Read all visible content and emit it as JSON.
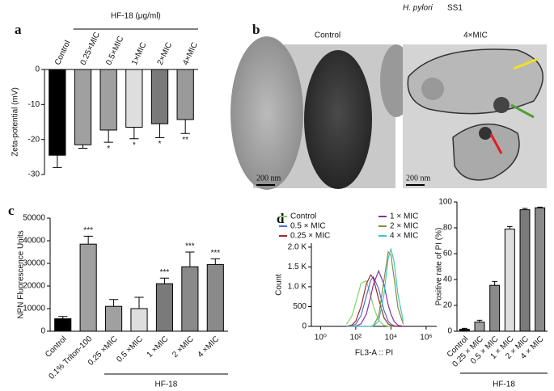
{
  "chart_data": [
    {
      "type": "bar",
      "panel": "a",
      "ylabel": "Zeta-potential (mV)",
      "group_label": "HF-18 (μg/ml)",
      "categories": [
        "Control",
        "0.25×MIC",
        "0.5×MIC",
        "1×MIC",
        "2×MIC",
        "4×MIC"
      ],
      "values": [
        -24.5,
        -21.5,
        -17.3,
        -16.5,
        -15.5,
        -14.3
      ],
      "errors": [
        3.5,
        1,
        3.5,
        3.3,
        4,
        4
      ],
      "significance": [
        null,
        null,
        "*",
        "*",
        "*",
        "**"
      ],
      "colors": [
        "#000000",
        "#a0a0a0",
        "#a0a0a0",
        "#dedede",
        "#7a7a7a",
        "#9a9a9a"
      ],
      "ylim": [
        -30,
        0
      ],
      "yticks": [
        0,
        -10,
        -20,
        -30
      ]
    },
    {
      "type": "bar",
      "panel": "c",
      "ylabel": "NPN  Fluorescence Units",
      "group_label": "HF-18",
      "categories": [
        "Control",
        "0.1% Triton-100",
        "0.25 ×MIC",
        "0.5 ×MIC",
        "1 ×MIC",
        "2 ×MIC",
        "4 ×MIC"
      ],
      "values": [
        5500,
        38500,
        11000,
        10000,
        21000,
        28500,
        29500
      ],
      "errors": [
        1000,
        3500,
        3000,
        5000,
        2500,
        6500,
        2500
      ],
      "significance": [
        null,
        "***",
        null,
        null,
        "***",
        "***",
        "***"
      ],
      "colors": [
        "#000000",
        "#a0a0a0",
        "#a0a0a0",
        "#dedede",
        "#7a7a7a",
        "#8a8a8a",
        "#8a8a8a"
      ],
      "ylim": [
        0,
        50000
      ],
      "yticks": [
        0,
        10000,
        20000,
        30000,
        40000,
        50000
      ]
    },
    {
      "type": "line",
      "panel": "d",
      "ylabel": "Count",
      "xlabel": "FL3-A :: PI",
      "xscale": "log",
      "x": [
        30,
        60,
        100,
        200,
        400,
        700,
        1000,
        2000,
        4000,
        7000,
        10000,
        15000,
        25000,
        50000
      ],
      "series": [
        {
          "name": "Control",
          "color": "#7fd46e",
          "values": [
            54,
            260,
            590,
            1090,
            1150,
            780,
            510,
            150,
            25,
            5,
            0,
            0,
            0,
            0
          ]
        },
        {
          "name": "0.5 × MIC",
          "color": "#4a70d0",
          "values": [
            1,
            12,
            56,
            275,
            760,
            1160,
            1250,
            950,
            410,
            130,
            56,
            16,
            3,
            0
          ]
        },
        {
          "name": "0.25 × MIC",
          "color": "#a02828",
          "values": [
            4,
            35,
            130,
            500,
            1070,
            1300,
            1210,
            690,
            220,
            60,
            20,
            5,
            0,
            0
          ]
        },
        {
          "name": "1 × MIC",
          "color": "#8a30a8",
          "values": [
            0,
            1,
            7,
            63,
            310,
            740,
            1060,
            1400,
            1060,
            540,
            310,
            130,
            30,
            3
          ]
        },
        {
          "name": "2 × MIC",
          "color": "#8a8a40",
          "values": [
            0,
            0,
            0,
            0,
            0,
            4,
            21,
            260,
            1160,
            1880,
            1800,
            1230,
            470,
            55
          ]
        },
        {
          "name": "4 × MIC",
          "color": "#40c4c4",
          "values": [
            0,
            0,
            0,
            0,
            0,
            0,
            8,
            130,
            800,
            1720,
            1950,
            1640,
            800,
            130
          ]
        }
      ],
      "xlim": [
        0.3,
        4000000
      ],
      "xticks": [
        {
          "value": 1,
          "label": "10⁰"
        },
        {
          "value": 100,
          "label": "10²"
        },
        {
          "value": 10000,
          "label": "10⁴"
        },
        {
          "value": 1000000,
          "label": "10⁶"
        }
      ],
      "ylim": [
        0,
        2100
      ],
      "yticks": [
        0,
        500,
        {
          "value": 1000,
          "label": "1.0 K"
        },
        {
          "value": 1500,
          "label": "1.5 K"
        },
        {
          "value": 2000,
          "label": "2.0 K"
        }
      ]
    },
    {
      "type": "bar",
      "ylabel": "Positive rate of PI (%)",
      "group_label": "HF-18",
      "categories": [
        "Control",
        "0.25 × MIC",
        "0.5 × MIC",
        "1 × MIC",
        "2 × MIC",
        "4 × MIC"
      ],
      "values": [
        1.5,
        7,
        35.5,
        79,
        94,
        95.5
      ],
      "errors": [
        0.8,
        1.5,
        3,
        2,
        1,
        0.5
      ],
      "colors": [
        "#000000",
        "#a0a0a0",
        "#8a8a8a",
        "#dedede",
        "#7a7a7a",
        "#8a8a8a"
      ],
      "ylim": [
        0,
        100
      ],
      "yticks": [
        0,
        20,
        40,
        60,
        80,
        100
      ]
    }
  ],
  "panel_b": {
    "label": "b",
    "species": "H. pylori",
    "strain": "SS1",
    "left_title": "Control",
    "right_title": "4×MIC",
    "left_scale": "200 nm",
    "right_scale": "200 nm"
  }
}
